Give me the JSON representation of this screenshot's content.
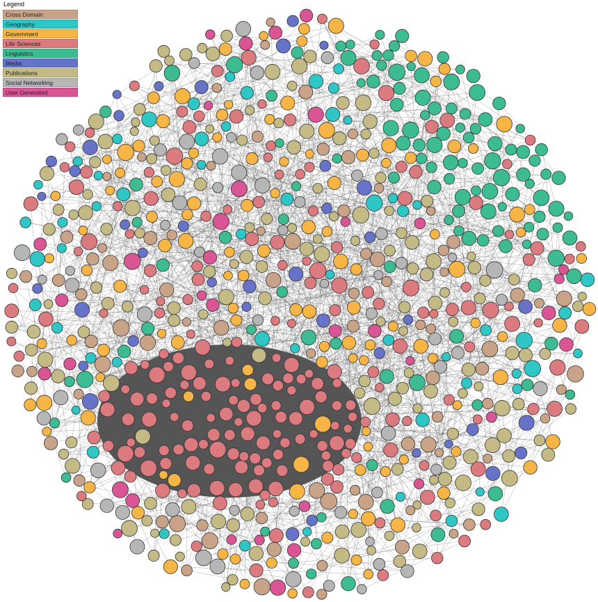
{
  "legend": {
    "title": "Legend",
    "items": [
      {
        "label": "Cross Domain",
        "color": "#c8a387"
      },
      {
        "label": "Geography",
        "color": "#2fc6c6"
      },
      {
        "label": "Government",
        "color": "#f7b545"
      },
      {
        "label": "Life Sciences",
        "color": "#db7a7f"
      },
      {
        "label": "Linguistics",
        "color": "#3dbb92"
      },
      {
        "label": "Media",
        "color": "#6673c8"
      },
      {
        "label": "Publications",
        "color": "#c3ba86"
      },
      {
        "label": "Social Networking",
        "color": "#b6b6b6"
      },
      {
        "label": "User Generated",
        "color": "#d95593"
      }
    ]
  },
  "diagram": {
    "type": "network",
    "layout": "circular cloud",
    "edge_color": "#555555"
  }
}
